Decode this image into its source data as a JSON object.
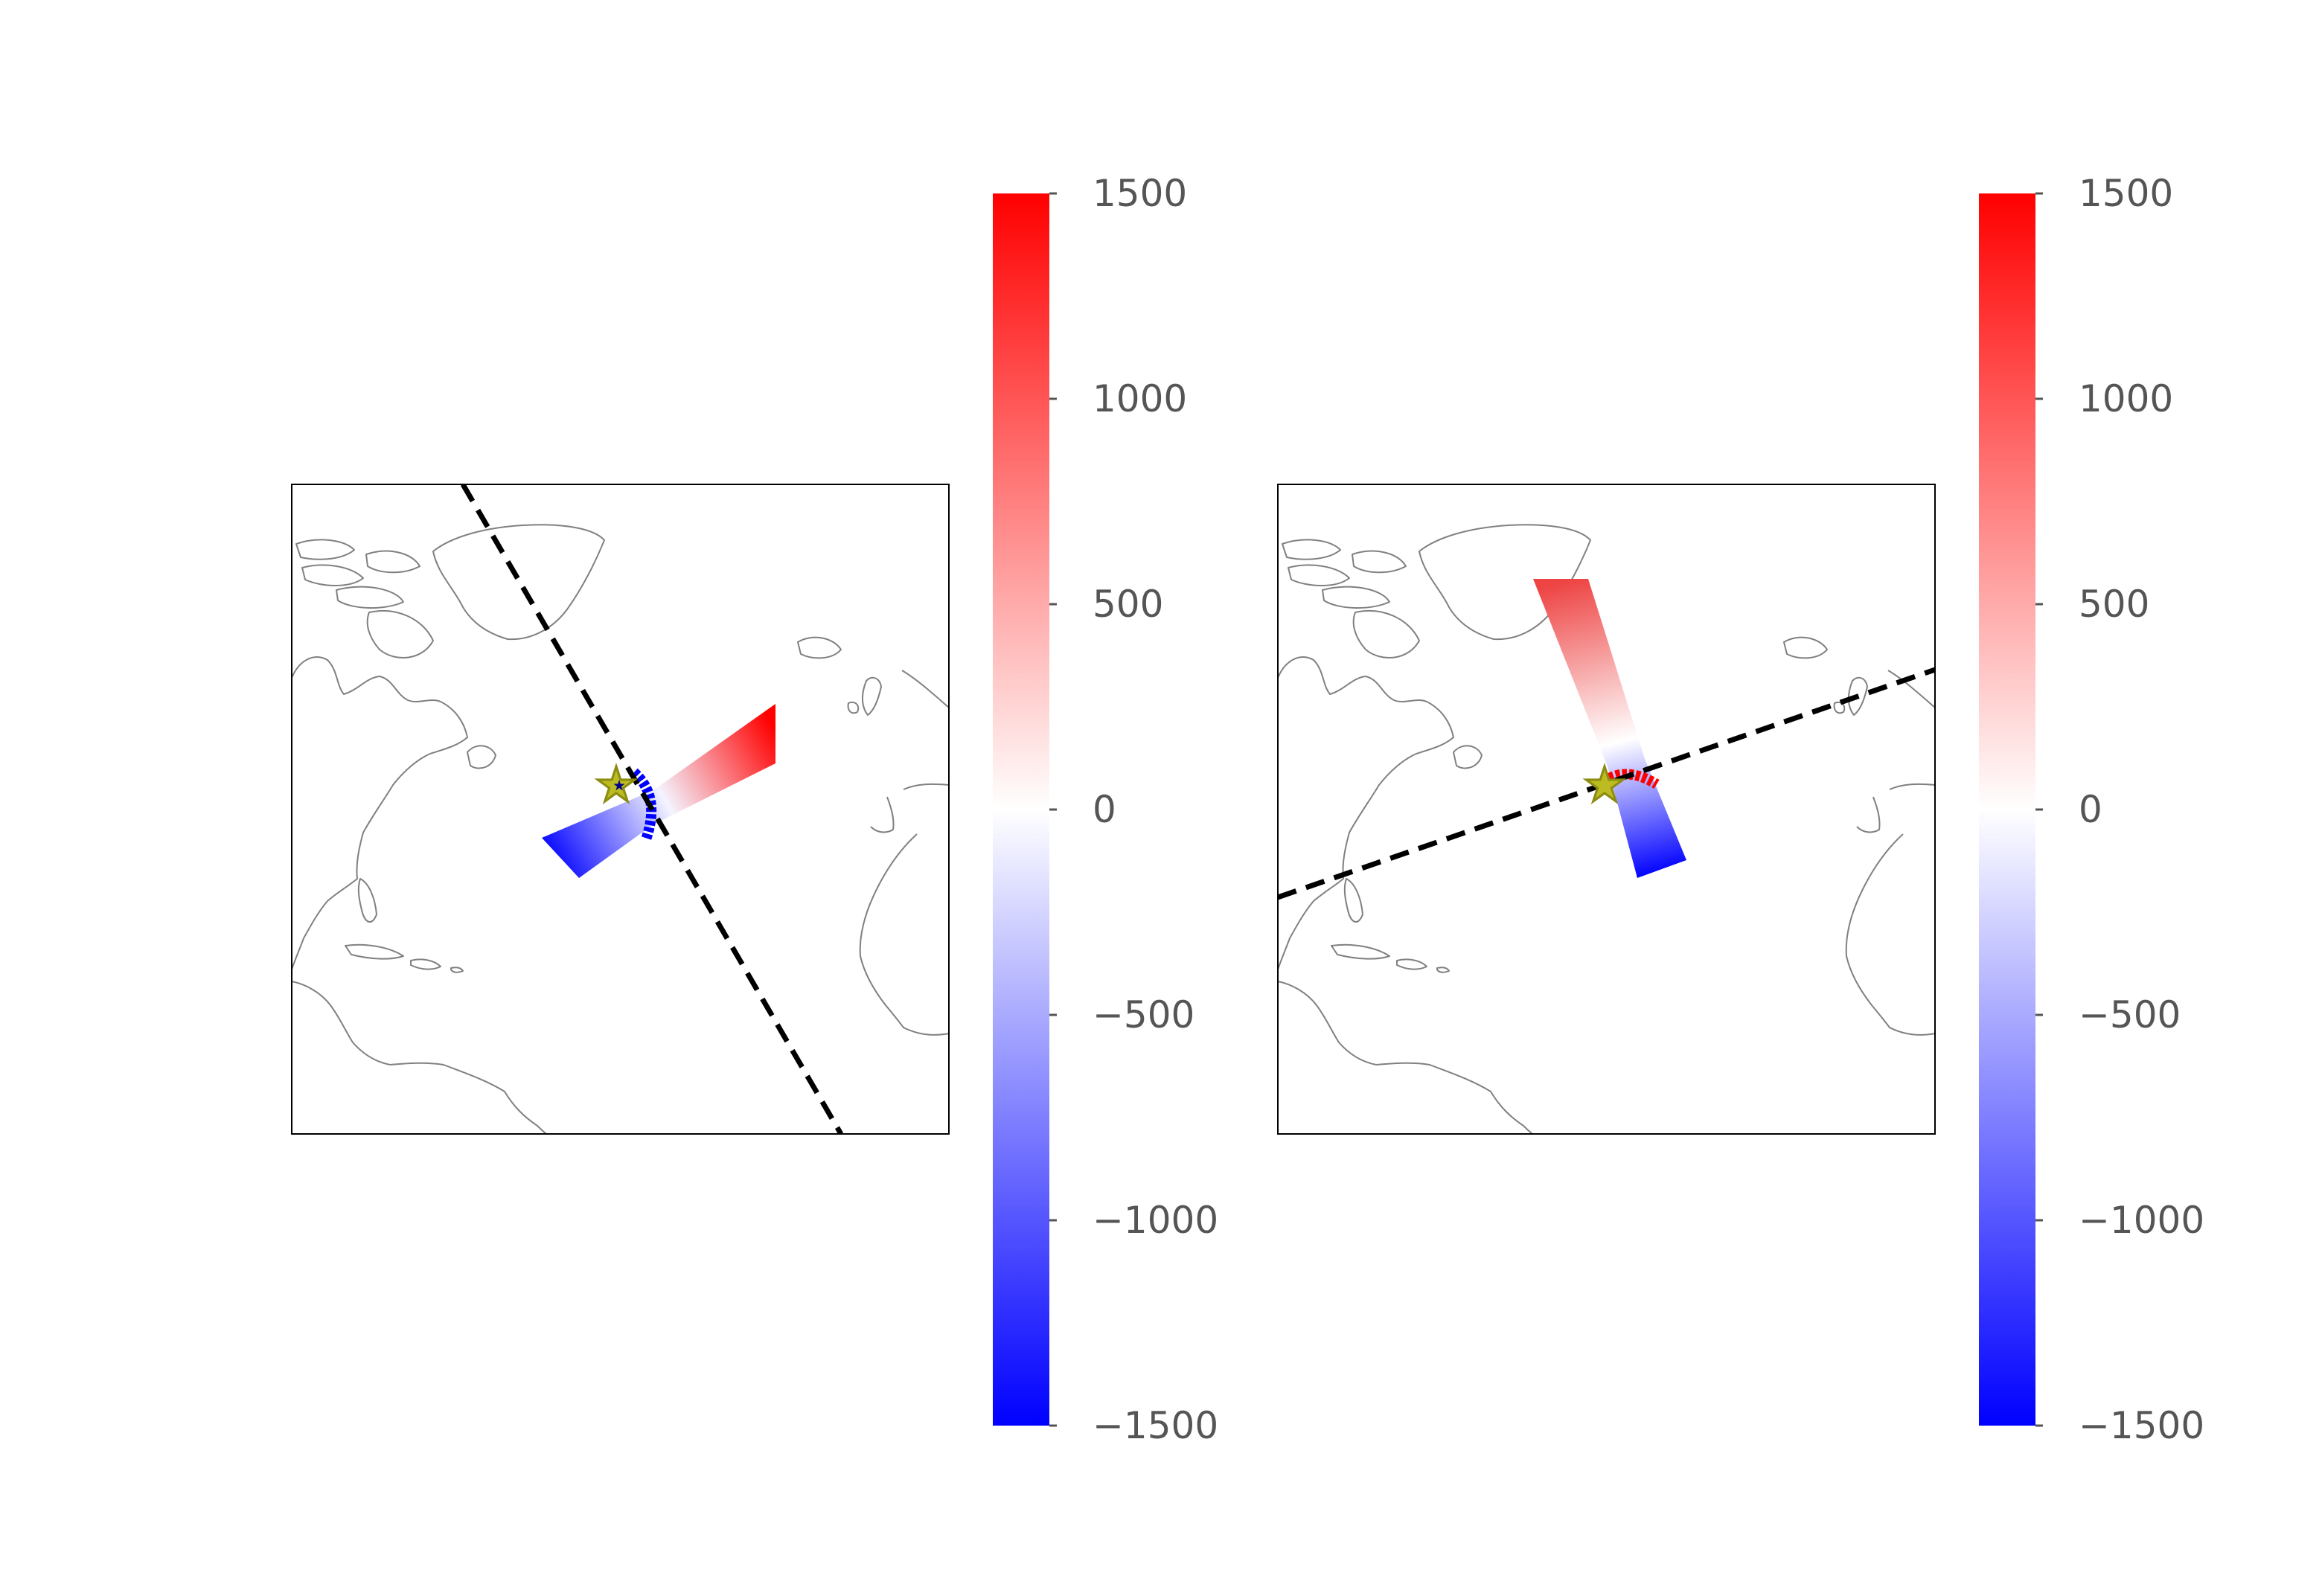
{
  "figure": {
    "background": "#ffffff"
  },
  "colors": {
    "positive": "#ff0000",
    "neutral": "#ffffff",
    "negative": "#0000ff",
    "dashed_line": "#000000",
    "coastline": "#808080",
    "star_fill": "#bcbc22",
    "star_edge": "#8c8c12",
    "tick_label": "#555555"
  },
  "chart_data": [
    {
      "type": "heatmap",
      "panel": "left",
      "map_region": "North Atlantic",
      "colorbar": {
        "range": [
          -1500,
          1500
        ],
        "ticks": [
          1500,
          1000,
          500,
          0,
          -500,
          -1000,
          -1500
        ],
        "tick_labels": [
          "1500",
          "1000",
          "500",
          "0",
          "−500",
          "−1000",
          "−1500"
        ],
        "colormap": "bwr"
      },
      "dashed_line_orientation": "NW-SE",
      "swath_orientation": "WSW-ENE",
      "swath_value_range": [
        -1500,
        1500
      ],
      "epicenter_marker": "star-icon"
    },
    {
      "type": "heatmap",
      "panel": "right",
      "map_region": "North Atlantic",
      "colorbar": {
        "range": [
          -1500,
          1500
        ],
        "ticks": [
          1500,
          1000,
          500,
          0,
          -500,
          -1000,
          -1500
        ],
        "tick_labels": [
          "1500",
          "1000",
          "500",
          "0",
          "−500",
          "−1000",
          "−1500"
        ],
        "colormap": "bwr"
      },
      "dashed_line_orientation": "WSW-ENE",
      "swath_orientation": "NNW-SSE",
      "swath_value_range": [
        -1500,
        1100
      ],
      "epicenter_marker": "star-icon"
    }
  ]
}
